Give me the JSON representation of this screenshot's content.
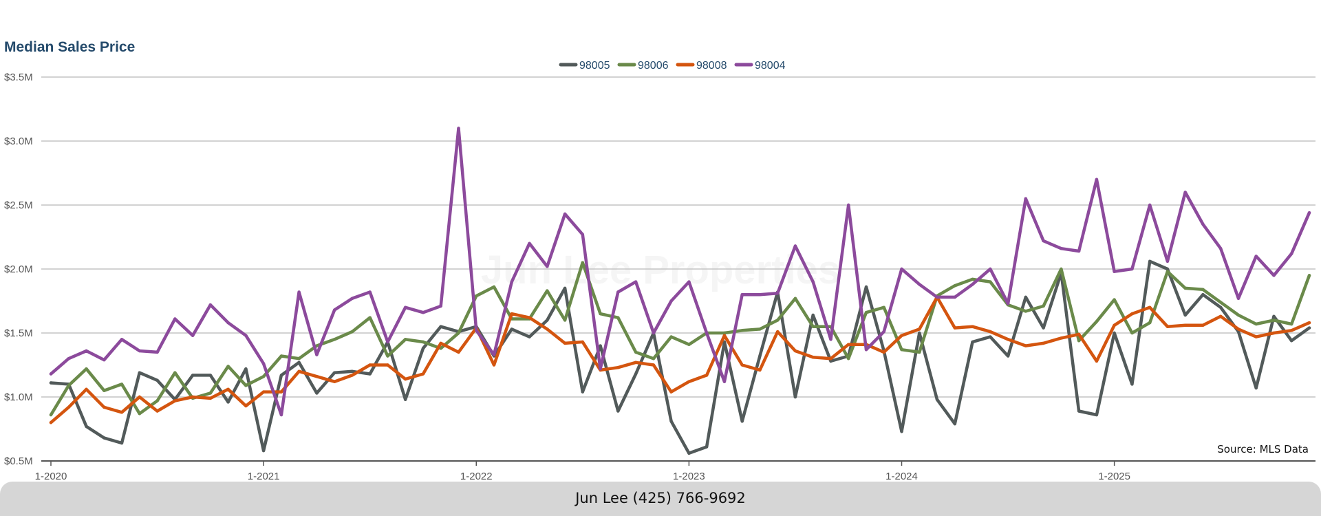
{
  "chart_data": {
    "type": "line",
    "title": "Median Sales Price",
    "source": "Source: MLS Data",
    "watermark": "Jun Lee Properties",
    "xlabel": "",
    "ylabel": "",
    "ylim": [
      0.5,
      3.5
    ],
    "y_ticks": [
      {
        "value": 3.5,
        "label": "$3.5M"
      },
      {
        "value": 3.0,
        "label": "$3.0M"
      },
      {
        "value": 2.5,
        "label": "$2.5M"
      },
      {
        "value": 2.0,
        "label": "$2.0M"
      },
      {
        "value": 1.5,
        "label": "$1.5M"
      },
      {
        "value": 1.0,
        "label": "$1.0M"
      },
      {
        "value": 0.5,
        "label": "$0.5M"
      }
    ],
    "x_ticks": [
      {
        "index": 0,
        "label": "1-2020"
      },
      {
        "index": 12,
        "label": "1-2021"
      },
      {
        "index": 24,
        "label": "1-2022"
      },
      {
        "index": 36,
        "label": "1-2023"
      },
      {
        "index": 48,
        "label": "1-2024"
      },
      {
        "index": 60,
        "label": "1-2025"
      }
    ],
    "x_count": 72,
    "grid": true,
    "legend_position": "top-center",
    "series": [
      {
        "name": "98005",
        "color": "#525a5a",
        "values": [
          1.11,
          1.1,
          0.77,
          0.68,
          0.64,
          1.19,
          1.13,
          0.98,
          1.17,
          1.17,
          0.96,
          1.22,
          0.58,
          1.17,
          1.27,
          1.03,
          1.19,
          1.2,
          1.18,
          1.43,
          0.98,
          1.38,
          1.55,
          1.51,
          1.55,
          1.32,
          1.53,
          1.47,
          1.6,
          1.85,
          1.04,
          1.4,
          0.89,
          1.18,
          1.5,
          0.81,
          0.56,
          0.61,
          1.43,
          0.81,
          1.32,
          1.82,
          1.0,
          1.64,
          1.28,
          1.32,
          1.86,
          1.36,
          0.73,
          1.5,
          0.98,
          0.79,
          1.43,
          1.47,
          1.32,
          1.78,
          1.54,
          1.97,
          0.89,
          0.86,
          1.5,
          1.1,
          2.06,
          2.0,
          1.64,
          1.8,
          1.7,
          1.51,
          1.07,
          1.63,
          1.44,
          1.54
        ]
      },
      {
        "name": "98006",
        "color": "#6a8a4a",
        "values": [
          0.86,
          1.09,
          1.22,
          1.05,
          1.1,
          0.87,
          0.97,
          1.19,
          0.99,
          1.03,
          1.24,
          1.09,
          1.16,
          1.32,
          1.3,
          1.4,
          1.45,
          1.51,
          1.62,
          1.32,
          1.45,
          1.43,
          1.38,
          1.5,
          1.79,
          1.86,
          1.61,
          1.61,
          1.83,
          1.6,
          2.05,
          1.65,
          1.62,
          1.35,
          1.3,
          1.47,
          1.41,
          1.5,
          1.5,
          1.52,
          1.53,
          1.6,
          1.77,
          1.55,
          1.55,
          1.3,
          1.66,
          1.7,
          1.37,
          1.35,
          1.79,
          1.87,
          1.92,
          1.9,
          1.72,
          1.67,
          1.71,
          2.0,
          1.44,
          1.59,
          1.76,
          1.5,
          1.58,
          1.98,
          1.85,
          1.84,
          1.74,
          1.64,
          1.57,
          1.6,
          1.57,
          1.95
        ]
      },
      {
        "name": "98008",
        "color": "#d4550f",
        "values": [
          0.8,
          0.92,
          1.06,
          0.92,
          0.88,
          1.0,
          0.89,
          0.97,
          1.0,
          0.99,
          1.06,
          0.93,
          1.04,
          1.04,
          1.2,
          1.16,
          1.12,
          1.17,
          1.25,
          1.25,
          1.14,
          1.18,
          1.42,
          1.35,
          1.54,
          1.25,
          1.65,
          1.62,
          1.53,
          1.42,
          1.43,
          1.21,
          1.23,
          1.27,
          1.25,
          1.04,
          1.12,
          1.17,
          1.48,
          1.25,
          1.21,
          1.51,
          1.36,
          1.31,
          1.3,
          1.41,
          1.41,
          1.35,
          1.48,
          1.53,
          1.78,
          1.54,
          1.55,
          1.51,
          1.45,
          1.4,
          1.42,
          1.46,
          1.49,
          1.28,
          1.56,
          1.65,
          1.7,
          1.55,
          1.56,
          1.56,
          1.63,
          1.53,
          1.47,
          1.5,
          1.52,
          1.58
        ]
      },
      {
        "name": "98004",
        "color": "#8c4a9c",
        "values": [
          1.18,
          1.3,
          1.36,
          1.29,
          1.45,
          1.36,
          1.35,
          1.61,
          1.48,
          1.72,
          1.58,
          1.48,
          1.26,
          0.86,
          1.82,
          1.33,
          1.68,
          1.77,
          1.82,
          1.43,
          1.7,
          1.66,
          1.71,
          3.1,
          1.52,
          1.33,
          1.9,
          2.2,
          2.02,
          2.43,
          2.27,
          1.22,
          1.82,
          1.9,
          1.5,
          1.75,
          1.9,
          1.5,
          1.12,
          1.8,
          1.8,
          1.81,
          2.18,
          1.9,
          1.45,
          2.5,
          1.37,
          1.51,
          2.0,
          1.88,
          1.78,
          1.78,
          1.88,
          2.0,
          1.73,
          2.55,
          2.22,
          2.16,
          2.14,
          2.7,
          1.98,
          2.0,
          2.5,
          2.06,
          2.6,
          2.35,
          2.16,
          1.77,
          2.1,
          1.95,
          2.12,
          2.44
        ]
      }
    ]
  },
  "footer": {
    "contact": "Jun Lee (425) 766-9692"
  }
}
